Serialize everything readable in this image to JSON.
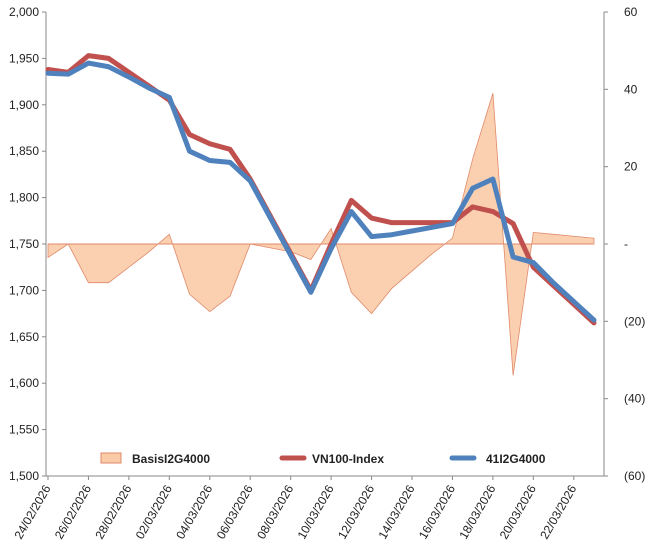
{
  "chart_data": {
    "type": "line",
    "x": [
      "24/02/2026",
      "25/02/2026",
      "26/02/2026",
      "27/02/2026",
      "28/02/2026",
      "01/03/2026",
      "02/03/2026",
      "03/03/2026",
      "04/03/2026",
      "05/03/2026",
      "06/03/2026",
      "07/03/2026",
      "08/03/2026",
      "09/03/2026",
      "10/03/2026",
      "11/03/2026",
      "12/03/2026",
      "13/03/2026",
      "14/03/2026",
      "15/03/2026",
      "16/03/2026",
      "17/03/2026",
      "18/03/2026",
      "19/03/2026",
      "20/03/2026",
      "21/03/2026",
      "22/03/2026",
      "23/03/2026"
    ],
    "x_tick_labels": [
      "24/02/2026",
      "26/02/2026",
      "28/02/2026",
      "02/03/2026",
      "04/03/2026",
      "06/03/2026",
      "08/03/2026",
      "10/03/2026",
      "12/03/2026",
      "14/03/2026",
      "16/03/2026",
      "18/03/2026",
      "20/03/2026",
      "22/03/2026"
    ],
    "y_left": {
      "ylim": [
        1500,
        2000
      ],
      "ticks": [
        "1,500",
        "1,550",
        "1,600",
        "1,650",
        "1,700",
        "1,750",
        "1,800",
        "1,850",
        "1,900",
        "1,950",
        "2,000"
      ]
    },
    "y_right": {
      "ylim": [
        -60,
        60
      ],
      "ticks": [
        "(60)",
        "(40)",
        "(20)",
        "-",
        "20",
        "40",
        "60"
      ]
    },
    "series": [
      {
        "name": "BasisI2G4000",
        "kind": "area",
        "axis": "right",
        "color": "#f9cba7",
        "stroke": "#e08a6a",
        "values": [
          -3.5,
          0,
          -10,
          -10,
          -6,
          -2,
          2.5,
          -13,
          -17.5,
          -13.5,
          0,
          -1,
          -2,
          -4,
          4,
          -12.5,
          -18,
          -11.5,
          -7,
          -2.5,
          1.5,
          22,
          39,
          -34,
          3,
          2.5,
          2,
          1.5
        ]
      },
      {
        "name": "VN100-Index",
        "kind": "line",
        "axis": "left",
        "color": "#c0504d",
        "values": [
          1938,
          1935,
          1953,
          1950,
          1935,
          1920,
          1905,
          1868,
          1858,
          1852,
          1820,
          1780,
          1740,
          1700,
          1750,
          1797,
          1778,
          1773,
          1773,
          1773,
          1773,
          1790,
          1785,
          1772,
          1725,
          1705,
          1685,
          1665
        ]
      },
      {
        "name": "41I2G4000",
        "kind": "line",
        "axis": "left",
        "color": "#4f81bd",
        "values": [
          1934,
          1933,
          1945,
          1941,
          1930,
          1918,
          1908,
          1850,
          1840,
          1838,
          1818,
          1778,
          1738,
          1698,
          1745,
          1785,
          1758,
          1760,
          1764,
          1768,
          1772,
          1810,
          1820,
          1736,
          1730,
          1708,
          1688,
          1668
        ]
      }
    ],
    "legend": {
      "placement": "bottom",
      "entries": [
        "BasisI2G4000",
        "VN100-Index",
        "41I2G4000"
      ]
    },
    "grid": false
  }
}
